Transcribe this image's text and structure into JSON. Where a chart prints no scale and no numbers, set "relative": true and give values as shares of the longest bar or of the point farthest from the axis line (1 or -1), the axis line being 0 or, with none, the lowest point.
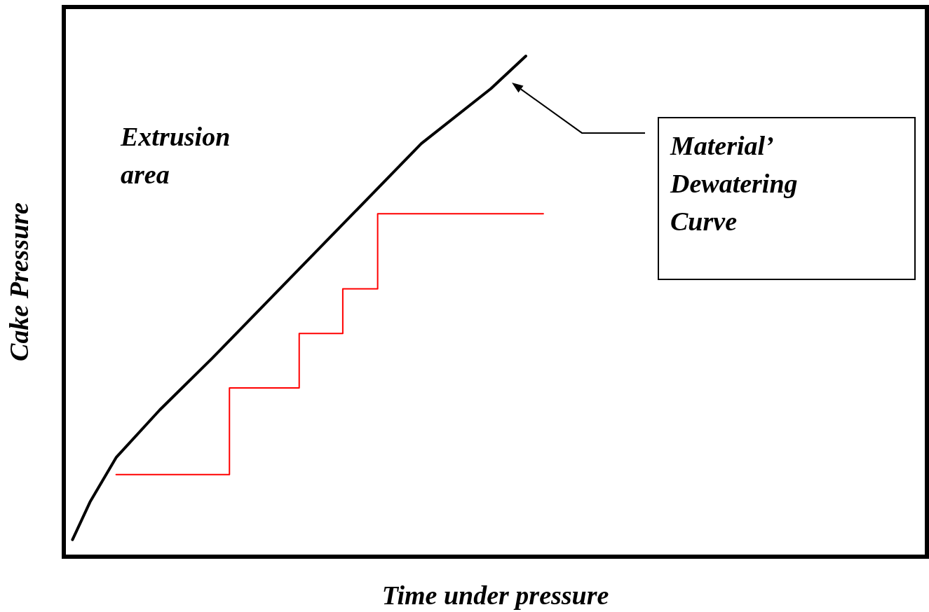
{
  "chart_data": {
    "type": "line",
    "relative": true,
    "xlabel": "Time under pressure",
    "ylabel": "Cake Pressure",
    "grid": false,
    "marker": "none",
    "line_style": "solid",
    "categories": [
      null,
      null,
      null,
      null,
      null,
      null,
      null,
      null,
      null,
      null,
      null,
      null,
      null,
      null,
      null,
      null,
      null,
      null,
      null,
      null,
      null,
      null,
      null,
      null,
      null,
      null,
      null,
      null,
      null,
      null,
      null,
      null,
      null,
      null,
      null,
      null,
      null,
      null,
      null,
      null,
      null,
      null,
      null,
      null,
      null,
      null,
      null,
      null,
      null,
      null,
      null,
      null,
      null,
      null,
      null,
      null,
      null,
      null,
      null,
      null,
      null,
      null,
      null,
      null,
      null,
      null,
      null,
      null,
      null,
      null,
      null,
      null,
      null,
      null,
      null,
      null,
      null,
      null,
      null,
      null,
      null,
      null,
      null,
      null,
      null,
      null,
      null,
      null,
      null,
      null,
      null,
      null,
      null,
      null,
      null,
      null,
      null,
      null,
      null,
      null
    ],
    "series": [
      {
        "color": "#000000",
        "values": [
          null,
          0.034,
          null,
          0.109,
          null,
          null,
          0.198,
          null,
          null,
          null,
          null,
          0.293,
          null,
          null,
          null,
          null,
          null,
          0.396,
          null,
          null,
          null,
          null,
          null,
          null,
          null,
          0.539,
          null,
          null,
          null,
          null,
          null,
          null,
          null,
          0.682,
          null,
          null,
          null,
          null,
          null,
          null,
          null,
          0.825,
          null,
          null,
          null,
          null,
          null,
          null,
          null,
          0.935,
          null,
          null,
          null,
          1,
          null,
          null,
          null,
          null,
          null,
          null,
          null,
          null,
          null,
          null,
          null,
          null,
          null,
          null,
          null,
          null,
          null,
          null,
          null,
          null,
          null,
          null,
          null,
          null,
          null,
          null,
          null,
          null,
          null,
          null,
          null,
          null,
          null,
          null,
          null,
          null,
          null,
          null,
          null,
          null,
          null,
          null,
          null,
          null,
          null,
          null
        ]
      },
      {
        "type": "step",
        "color": "#ff0000",
        "values": [
          null,
          null,
          null,
          null,
          null,
          null,
          0.164,
          null,
          null,
          null,
          null,
          null,
          null,
          null,
          null,
          null,
          null,
          null,
          null,
          0.337,
          null,
          null,
          null,
          null,
          null,
          null,
          null,
          0.446,
          null,
          null,
          null,
          null,
          0.535,
          null,
          null,
          null,
          0.685,
          null,
          null,
          null,
          null,
          null,
          null,
          null,
          null,
          null,
          null,
          null,
          null,
          null,
          null,
          null,
          null,
          null,
          null,
          0.685,
          null,
          null,
          null,
          null,
          null,
          null,
          null,
          null,
          null,
          null,
          null,
          null,
          null,
          null,
          null,
          null,
          null,
          null,
          null,
          null,
          null,
          null,
          null,
          null,
          null,
          null,
          null,
          null,
          null,
          null,
          null,
          null,
          null,
          null,
          null,
          null,
          null,
          null,
          null,
          null,
          null,
          null,
          null,
          null
        ]
      }
    ],
    "annotations": [
      "Extrusion area",
      "Material’ Dewatering Curve"
    ]
  }
}
